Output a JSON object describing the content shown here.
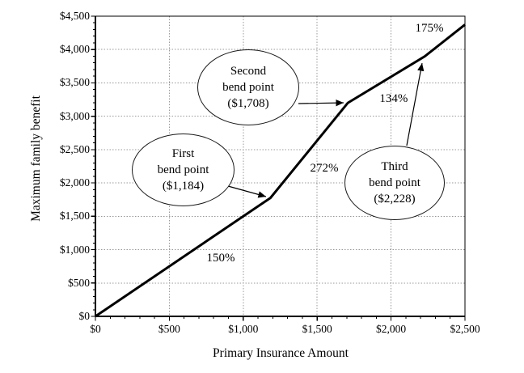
{
  "chart_data": {
    "type": "line",
    "title": "",
    "xlabel": "Primary Insurance Amount",
    "ylabel": "Maximum family benefit",
    "xlim": [
      0,
      2500
    ],
    "ylim": [
      0,
      4500
    ],
    "x_ticks": [
      0,
      500,
      1000,
      1500,
      2000,
      2500
    ],
    "x_tick_labels": [
      "$0",
      "$500",
      "$1,000",
      "$1,500",
      "$2,000",
      "$2,500"
    ],
    "y_ticks": [
      0,
      500,
      1000,
      1500,
      2000,
      2500,
      3000,
      3500,
      4000,
      4500
    ],
    "y_tick_labels": [
      "$0",
      "$500",
      "$1,000",
      "$1,500",
      "$2,000",
      "$2,500",
      "$3,000",
      "$3,500",
      "$4,000",
      "$4,500"
    ],
    "minor_tick_interval": 100,
    "grid": {
      "show": true,
      "style": "dotted",
      "at": "major-ticks"
    },
    "legend": "none",
    "series": [
      {
        "name": "Maximum family benefit vs Primary Insurance Amount",
        "points": [
          [
            0,
            0
          ],
          [
            1184,
            1776
          ],
          [
            1708,
            3201
          ],
          [
            2228,
            3898
          ],
          [
            2500,
            4374
          ]
        ]
      }
    ],
    "segment_labels": [
      {
        "text": "150%",
        "x": 848,
        "y": 873
      },
      {
        "text": "272%",
        "x": 1548,
        "y": 2220
      },
      {
        "text": "134%",
        "x": 2018,
        "y": 3262
      },
      {
        "text": "175%",
        "x": 2259,
        "y": 4317
      }
    ],
    "annotations": [
      {
        "name": "first-bend-point",
        "lines": [
          "First",
          "bend point",
          "($1,184)"
        ],
        "arrow": {
          "from": [
            897,
            1953
          ],
          "to": [
            1154,
            1795
          ]
        }
      },
      {
        "name": "second-bend-point",
        "lines": [
          "Second",
          "bend point",
          "($1,708)"
        ],
        "arrow": {
          "from": [
            1373,
            3190
          ],
          "to": [
            1679,
            3202
          ]
        }
      },
      {
        "name": "third-bend-point",
        "lines": [
          "Third",
          "bend point",
          "($2,228)"
        ],
        "arrow": {
          "from": [
            2106,
            2559
          ],
          "to": [
            2210,
            3796
          ]
        }
      }
    ],
    "colors": {
      "line": "#000000",
      "grid": "#999999",
      "text": "#000000",
      "background": "#ffffff",
      "border": "#000000"
    }
  }
}
